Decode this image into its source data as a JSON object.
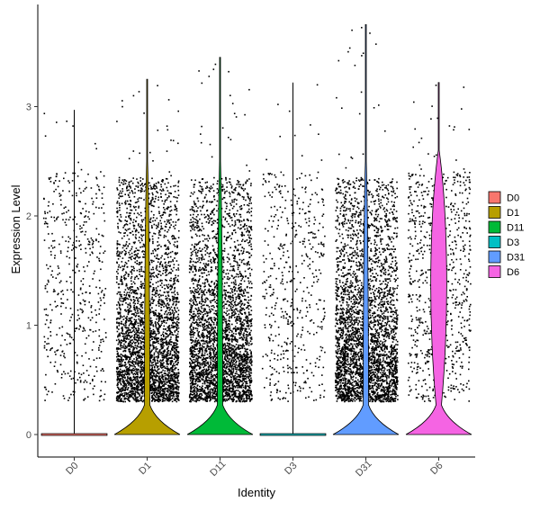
{
  "chart_data": {
    "type": "violin",
    "xlabel": "Identity",
    "ylabel": "Expression Level",
    "categories": [
      "D0",
      "D1",
      "D11",
      "D3",
      "D31",
      "D6"
    ],
    "ylim": [
      -0.22,
      3.8
    ],
    "yticks": [
      0,
      1,
      2,
      3
    ],
    "legend_position": "right",
    "legend": [
      {
        "label": "D0",
        "color": "#F8766D"
      },
      {
        "label": "D1",
        "color": "#B79F00"
      },
      {
        "label": "D11",
        "color": "#00BA38"
      },
      {
        "label": "D3",
        "color": "#00BFC4"
      },
      {
        "label": "D31",
        "color": "#619CFF"
      },
      {
        "label": "D6",
        "color": "#F564E3"
      }
    ],
    "series": [
      {
        "identity": "D0",
        "max": 2.97,
        "points_range": [
          0.3,
          2.97
        ],
        "point_density": "sparse"
      },
      {
        "identity": "D1",
        "max": 3.25,
        "points_range": [
          0.3,
          3.25
        ],
        "point_density": "dense"
      },
      {
        "identity": "D11",
        "max": 3.45,
        "points_range": [
          0.3,
          3.45
        ],
        "point_density": "dense"
      },
      {
        "identity": "D3",
        "max": 3.22,
        "points_range": [
          0.3,
          3.22
        ],
        "point_density": "sparse"
      },
      {
        "identity": "D31",
        "max": 3.75,
        "points_range": [
          0.3,
          3.75
        ],
        "point_density": "dense"
      },
      {
        "identity": "D6",
        "max": 3.22,
        "points_range": [
          0.3,
          3.22
        ],
        "point_density": "medium"
      }
    ]
  }
}
